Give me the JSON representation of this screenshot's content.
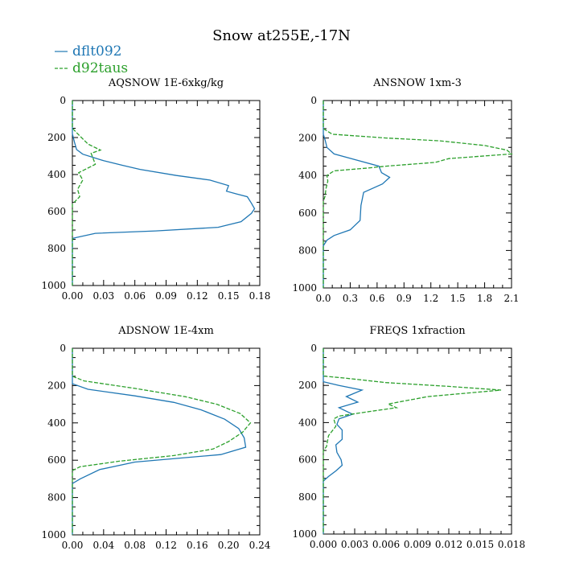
{
  "figure": {
    "title": "Snow at255E,-17N",
    "legend": [
      {
        "name": "dflt092",
        "color": "#1f77b4",
        "dash": "solid"
      },
      {
        "name": "d92taus",
        "color": "#2ca02c",
        "dash": "dashed"
      }
    ]
  },
  "chart_data": [
    {
      "type": "line",
      "title": "AQSNOW  1E-6xkg/kg",
      "xlim": [
        0,
        0.18
      ],
      "ylim": [
        1000,
        0
      ],
      "xticks": [
        0,
        0.03,
        0.06,
        0.09,
        0.12,
        0.15,
        0.18
      ],
      "xtick_labels": [
        "0.00",
        "0.03",
        "0.06",
        "0.09",
        "0.12",
        "0.15",
        "0.18"
      ],
      "yticks": [
        0,
        200,
        400,
        600,
        800,
        1000
      ],
      "ytick_labels": [
        "0",
        "200",
        "400",
        "600",
        "800",
        "1000"
      ],
      "series": [
        {
          "name": "dflt092",
          "points": [
            [
              0,
              0
            ],
            [
              0,
              180
            ],
            [
              0.002,
              225
            ],
            [
              0.004,
              265
            ],
            [
              0.01,
              290
            ],
            [
              0.03,
              325
            ],
            [
              0.048,
              350
            ],
            [
              0.065,
              372
            ],
            [
              0.1,
              405
            ],
            [
              0.132,
              430
            ],
            [
              0.15,
              460
            ],
            [
              0.148,
              490
            ],
            [
              0.158,
              505
            ],
            [
              0.168,
              520
            ],
            [
              0.172,
              555
            ],
            [
              0.175,
              585
            ],
            [
              0.172,
              610
            ],
            [
              0.162,
              655
            ],
            [
              0.14,
              685
            ],
            [
              0.08,
              705
            ],
            [
              0.022,
              718
            ],
            [
              0,
              745
            ],
            [
              0,
              1000
            ]
          ]
        },
        {
          "name": "d92taus",
          "points": [
            [
              0,
              0
            ],
            [
              0,
              150
            ],
            [
              0.006,
              185
            ],
            [
              0.015,
              235
            ],
            [
              0.027,
              268
            ],
            [
              0.018,
              285
            ],
            [
              0.02,
              315
            ],
            [
              0.022,
              345
            ],
            [
              0.006,
              390
            ],
            [
              0.01,
              430
            ],
            [
              0.005,
              480
            ],
            [
              0.007,
              520
            ],
            [
              0,
              560
            ],
            [
              0,
              1000
            ]
          ]
        }
      ]
    },
    {
      "type": "line",
      "title": "ANSNOW  1xm-3",
      "xlim": [
        0,
        2.1
      ],
      "ylim": [
        1000,
        0
      ],
      "xticks": [
        0,
        0.3,
        0.6,
        0.9,
        1.2,
        1.5,
        1.8,
        2.1
      ],
      "xtick_labels": [
        "0.0",
        "0.3",
        "0.6",
        "0.9",
        "1.2",
        "1.5",
        "1.8",
        "2.1"
      ],
      "yticks": [
        0,
        200,
        400,
        600,
        800,
        1000
      ],
      "ytick_labels": [
        "0",
        "200",
        "400",
        "600",
        "800",
        "1000"
      ],
      "series": [
        {
          "name": "dflt092",
          "points": [
            [
              0,
              0
            ],
            [
              0,
              180
            ],
            [
              0.02,
              210
            ],
            [
              0.04,
              250
            ],
            [
              0.12,
              285
            ],
            [
              0.35,
              315
            ],
            [
              0.62,
              350
            ],
            [
              0.65,
              385
            ],
            [
              0.74,
              410
            ],
            [
              0.66,
              445
            ],
            [
              0.45,
              490
            ],
            [
              0.42,
              560
            ],
            [
              0.41,
              640
            ],
            [
              0.3,
              690
            ],
            [
              0.12,
              720
            ],
            [
              0.04,
              745
            ],
            [
              0,
              775
            ],
            [
              0,
              1000
            ]
          ]
        },
        {
          "name": "d92taus",
          "points": [
            [
              0,
              0
            ],
            [
              0,
              150
            ],
            [
              0.1,
              180
            ],
            [
              0.7,
              200
            ],
            [
              1.3,
              215
            ],
            [
              1.8,
              240
            ],
            [
              2.05,
              265
            ],
            [
              2.1,
              285
            ],
            [
              1.4,
              310
            ],
            [
              1.25,
              330
            ],
            [
              0.7,
              350
            ],
            [
              0.5,
              360
            ],
            [
              0.12,
              375
            ],
            [
              0.04,
              400
            ],
            [
              0.05,
              430
            ],
            [
              0.03,
              470
            ],
            [
              0.02,
              510
            ],
            [
              0,
              540
            ],
            [
              0,
              1000
            ]
          ]
        }
      ]
    },
    {
      "type": "line",
      "title": "ADSNOW  1E-4xm",
      "xlim": [
        0,
        0.24
      ],
      "ylim": [
        1000,
        0
      ],
      "xticks": [
        0,
        0.04,
        0.08,
        0.12,
        0.16,
        0.2,
        0.24
      ],
      "xtick_labels": [
        "0.00",
        "0.04",
        "0.08",
        "0.12",
        "0.16",
        "0.20",
        "0.24"
      ],
      "yticks": [
        0,
        200,
        400,
        600,
        800,
        1000
      ],
      "ytick_labels": [
        "0",
        "200",
        "400",
        "600",
        "800",
        "1000"
      ],
      "series": [
        {
          "name": "dflt092",
          "points": [
            [
              0,
              0
            ],
            [
              0,
              190
            ],
            [
              0.02,
              220
            ],
            [
              0.08,
              255
            ],
            [
              0.13,
              290
            ],
            [
              0.165,
              330
            ],
            [
              0.195,
              380
            ],
            [
              0.213,
              430
            ],
            [
              0.22,
              480
            ],
            [
              0.222,
              530
            ],
            [
              0.19,
              570
            ],
            [
              0.08,
              610
            ],
            [
              0.035,
              650
            ],
            [
              0.01,
              700
            ],
            [
              0,
              725
            ],
            [
              0,
              1000
            ]
          ]
        },
        {
          "name": "d92taus",
          "points": [
            [
              0,
              0
            ],
            [
              0,
              150
            ],
            [
              0.015,
              175
            ],
            [
              0.08,
              215
            ],
            [
              0.145,
              260
            ],
            [
              0.185,
              300
            ],
            [
              0.215,
              350
            ],
            [
              0.228,
              400
            ],
            [
              0.218,
              450
            ],
            [
              0.2,
              500
            ],
            [
              0.18,
              540
            ],
            [
              0.13,
              575
            ],
            [
              0.06,
              605
            ],
            [
              0.01,
              635
            ],
            [
              0,
              655
            ],
            [
              0,
              1000
            ]
          ]
        }
      ]
    },
    {
      "type": "line",
      "title": "FREQS  1xfraction",
      "xlim": [
        0,
        0.018
      ],
      "ylim": [
        1000,
        0
      ],
      "xticks": [
        0,
        0.003,
        0.006,
        0.009,
        0.012,
        0.015,
        0.018
      ],
      "xtick_labels": [
        "0.000",
        "0.003",
        "0.006",
        "0.009",
        "0.012",
        "0.015",
        "0.018"
      ],
      "yticks": [
        0,
        200,
        400,
        600,
        800,
        1000
      ],
      "ytick_labels": [
        "0",
        "200",
        "400",
        "600",
        "800",
        "1000"
      ],
      "series": [
        {
          "name": "dflt092",
          "points": [
            [
              0,
              0
            ],
            [
              0,
              180
            ],
            [
              0.0015,
              200
            ],
            [
              0.0037,
              225
            ],
            [
              0.0022,
              260
            ],
            [
              0.0033,
              290
            ],
            [
              0.0015,
              320
            ],
            [
              0.0028,
              355
            ],
            [
              0.0015,
              380
            ],
            [
              0.0013,
              410
            ],
            [
              0.0018,
              440
            ],
            [
              0.0018,
              490
            ],
            [
              0.0012,
              520
            ],
            [
              0.0013,
              560
            ],
            [
              0.0017,
              600
            ],
            [
              0.0018,
              630
            ],
            [
              0.0012,
              660
            ],
            [
              0.0005,
              690
            ],
            [
              0,
              715
            ],
            [
              0,
              1000
            ]
          ]
        },
        {
          "name": "d92taus",
          "points": [
            [
              0,
              0
            ],
            [
              0,
              150
            ],
            [
              0.002,
              160
            ],
            [
              0.006,
              185
            ],
            [
              0.012,
              205
            ],
            [
              0.017,
              225
            ],
            [
              0.01,
              260
            ],
            [
              0.0062,
              300
            ],
            [
              0.007,
              320
            ],
            [
              0.0045,
              340
            ],
            [
              0.0015,
              365
            ],
            [
              0.001,
              380
            ],
            [
              0.0012,
              420
            ],
            [
              0.0005,
              470
            ],
            [
              0.0003,
              530
            ],
            [
              0,
              550
            ],
            [
              0,
              1000
            ]
          ]
        }
      ]
    }
  ]
}
